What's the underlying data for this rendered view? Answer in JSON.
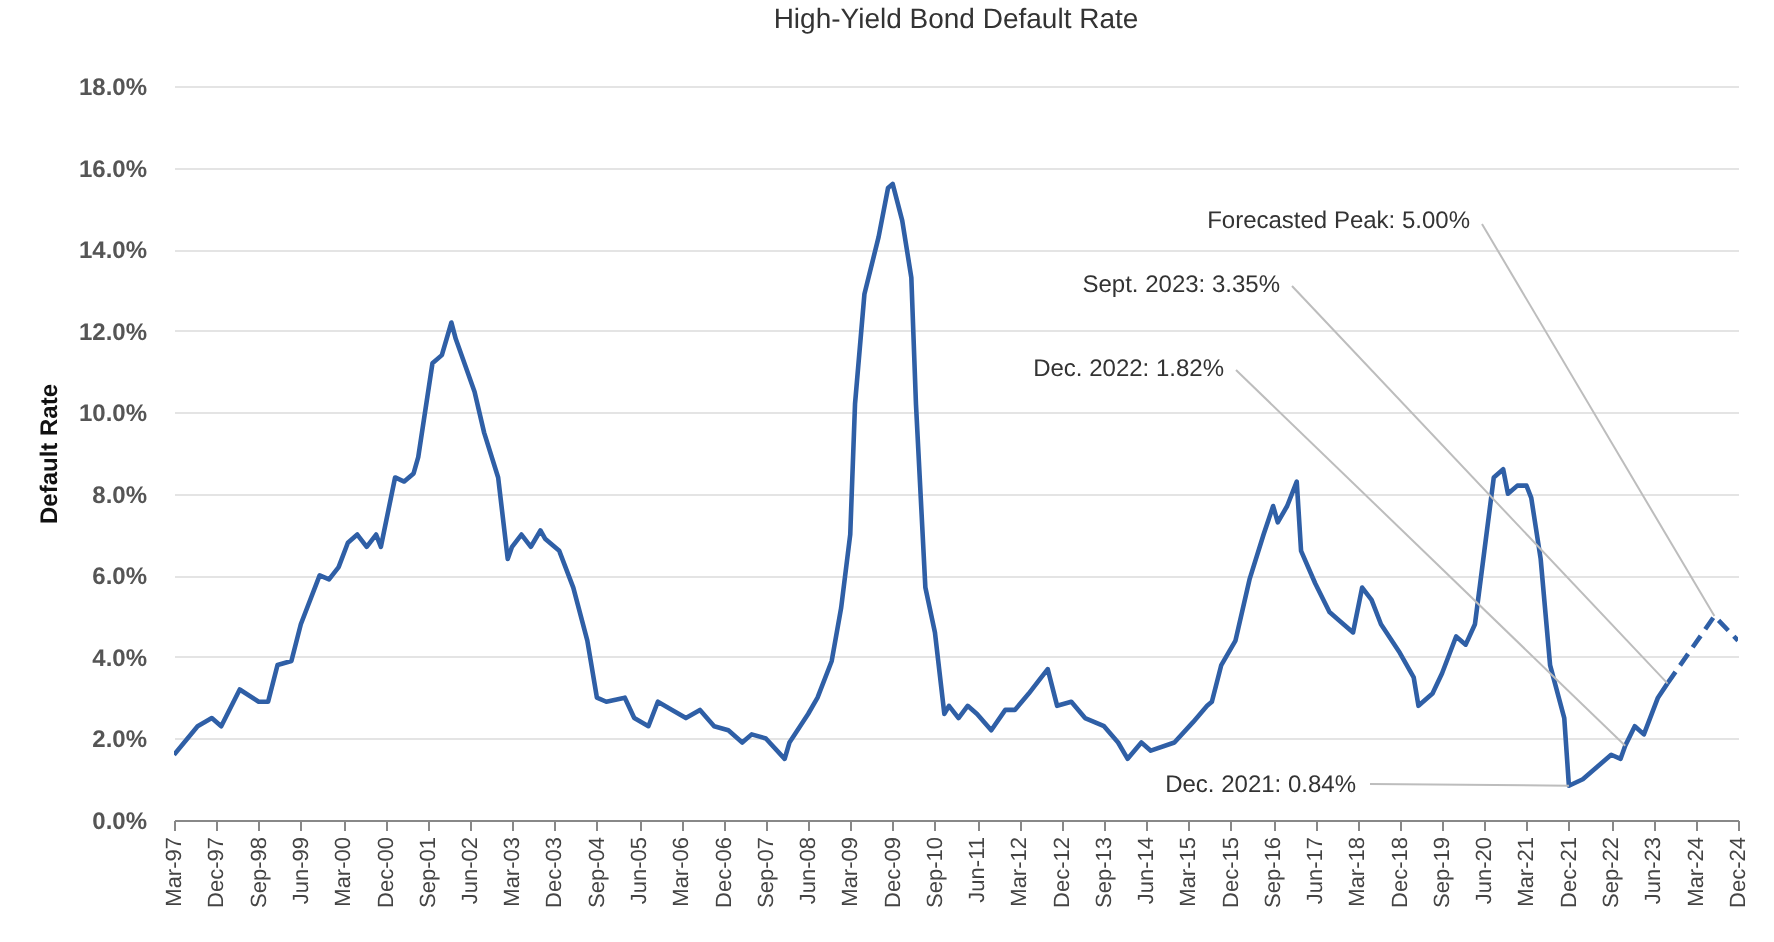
{
  "chart_data": {
    "type": "line",
    "title": "High-Yield Bond Default Rate",
    "ylabel": "Default Rate",
    "grid": "y",
    "line_style": "solid",
    "xlim": [
      "1997-03",
      "2024-12"
    ],
    "xticks": [
      {
        "value": "1997-03",
        "label": "Mar-97"
      },
      {
        "value": "1997-12",
        "label": "Dec-97"
      },
      {
        "value": "1998-09",
        "label": "Sep-98"
      },
      {
        "value": "1999-06",
        "label": "Jun-99"
      },
      {
        "value": "2000-03",
        "label": "Mar-00"
      },
      {
        "value": "2000-12",
        "label": "Dec-00"
      },
      {
        "value": "2001-09",
        "label": "Sep-01"
      },
      {
        "value": "2002-06",
        "label": "Jun-02"
      },
      {
        "value": "2003-03",
        "label": "Mar-03"
      },
      {
        "value": "2003-12",
        "label": "Dec-03"
      },
      {
        "value": "2004-09",
        "label": "Sep-04"
      },
      {
        "value": "2005-06",
        "label": "Jun-05"
      },
      {
        "value": "2006-03",
        "label": "Mar-06"
      },
      {
        "value": "2006-12",
        "label": "Dec-06"
      },
      {
        "value": "2007-09",
        "label": "Sep-07"
      },
      {
        "value": "2008-06",
        "label": "Jun-08"
      },
      {
        "value": "2009-03",
        "label": "Mar-09"
      },
      {
        "value": "2009-12",
        "label": "Dec-09"
      },
      {
        "value": "2010-09",
        "label": "Sep-10"
      },
      {
        "value": "2011-06",
        "label": "Jun-11"
      },
      {
        "value": "2012-03",
        "label": "Mar-12"
      },
      {
        "value": "2012-12",
        "label": "Dec-12"
      },
      {
        "value": "2013-09",
        "label": "Sep-13"
      },
      {
        "value": "2014-06",
        "label": "Jun-14"
      },
      {
        "value": "2015-03",
        "label": "Mar-15"
      },
      {
        "value": "2015-12",
        "label": "Dec-15"
      },
      {
        "value": "2016-09",
        "label": "Sep-16"
      },
      {
        "value": "2017-06",
        "label": "Jun-17"
      },
      {
        "value": "2018-03",
        "label": "Mar-18"
      },
      {
        "value": "2018-12",
        "label": "Dec-18"
      },
      {
        "value": "2019-09",
        "label": "Sep-19"
      },
      {
        "value": "2020-06",
        "label": "Jun-20"
      },
      {
        "value": "2021-03",
        "label": "Mar-21"
      },
      {
        "value": "2021-12",
        "label": "Dec-21"
      },
      {
        "value": "2022-09",
        "label": "Sep-22"
      },
      {
        "value": "2023-06",
        "label": "Jun-23"
      },
      {
        "value": "2024-03",
        "label": "Mar-24"
      },
      {
        "value": "2024-12",
        "label": "Dec-24"
      }
    ],
    "ylim": [
      0,
      18
    ],
    "yticks": [
      {
        "value": 0,
        "label": "0.0%"
      },
      {
        "value": 2,
        "label": "2.0%"
      },
      {
        "value": 4,
        "label": "4.0%"
      },
      {
        "value": 6,
        "label": "6.0%"
      },
      {
        "value": 8,
        "label": "8.0%"
      },
      {
        "value": 10,
        "label": "10.0%"
      },
      {
        "value": 12,
        "label": "12.0%"
      },
      {
        "value": 14,
        "label": "14.0%"
      },
      {
        "value": 16,
        "label": "16.0%"
      },
      {
        "value": 18,
        "label": "18.0%"
      }
    ],
    "series": [
      {
        "color": "#2f5fa6",
        "x": [
          "1997-03",
          "1997-08",
          "1997-11",
          "1998-01",
          "1998-05",
          "1998-09",
          "1998-11",
          "1999-01",
          "1999-04",
          "1999-06",
          "1999-10",
          "1999-12",
          "2000-02",
          "2000-04",
          "2000-06",
          "2000-08",
          "2000-10",
          "2000-11",
          "2001-02",
          "2001-04",
          "2001-06",
          "2001-07",
          "2001-10",
          "2001-12",
          "2002-02",
          "2002-03",
          "2002-07",
          "2002-09",
          "2002-12",
          "2003-02",
          "2003-03",
          "2003-05",
          "2003-07",
          "2003-09",
          "2003-10",
          "2004-01",
          "2004-04",
          "2004-07",
          "2004-09",
          "2004-11",
          "2005-03",
          "2005-05",
          "2005-08",
          "2005-10",
          "2006-01",
          "2006-04",
          "2006-07",
          "2006-10",
          "2007-01",
          "2007-04",
          "2007-06",
          "2007-09",
          "2008-01",
          "2008-02",
          "2008-06",
          "2008-08",
          "2008-11",
          "2009-01",
          "2009-03",
          "2009-04",
          "2009-06",
          "2009-09",
          "2009-11",
          "2009-12",
          "2010-02",
          "2010-04",
          "2010-05",
          "2010-07",
          "2010-09",
          "2010-11",
          "2010-12",
          "2011-02",
          "2011-04",
          "2011-06",
          "2011-09",
          "2011-12",
          "2012-02",
          "2012-05",
          "2012-07",
          "2012-09",
          "2012-11",
          "2013-02",
          "2013-05",
          "2013-09",
          "2013-12",
          "2014-02",
          "2014-05",
          "2014-07",
          "2014-12",
          "2015-04",
          "2015-07",
          "2015-08",
          "2015-10",
          "2016-01",
          "2016-04",
          "2016-07",
          "2016-09",
          "2016-10",
          "2016-12",
          "2017-02",
          "2017-03",
          "2017-06",
          "2017-09",
          "2017-11",
          "2018-02",
          "2018-04",
          "2018-06",
          "2018-08",
          "2018-12",
          "2019-03",
          "2019-04",
          "2019-07",
          "2019-09",
          "2019-12",
          "2020-02",
          "2020-04",
          "2020-06",
          "2020-08",
          "2020-10",
          "2020-11",
          "2021-01",
          "2021-03",
          "2021-04",
          "2021-06",
          "2021-08",
          "2021-11",
          "2021-12",
          "2022-03",
          "2022-06",
          "2022-09",
          "2022-11",
          "2022-12",
          "2023-02",
          "2023-04",
          "2023-07",
          "2023-09"
        ],
        "values": [
          1.6,
          2.3,
          2.5,
          2.3,
          3.2,
          2.9,
          2.9,
          3.8,
          3.9,
          4.8,
          6.0,
          5.9,
          6.2,
          6.8,
          7.0,
          6.7,
          7.0,
          6.7,
          8.4,
          8.3,
          8.5,
          8.9,
          11.2,
          11.4,
          12.2,
          11.8,
          10.5,
          9.5,
          8.4,
          6.4,
          6.7,
          7.0,
          6.7,
          7.1,
          6.9,
          6.6,
          5.7,
          4.4,
          3.0,
          2.9,
          3.0,
          2.5,
          2.3,
          2.9,
          2.7,
          2.5,
          2.7,
          2.3,
          2.2,
          1.9,
          2.1,
          2.0,
          1.5,
          1.9,
          2.6,
          3.0,
          3.9,
          5.2,
          7.0,
          10.2,
          12.9,
          14.3,
          15.5,
          15.6,
          14.7,
          13.3,
          10.2,
          5.7,
          4.6,
          2.6,
          2.8,
          2.5,
          2.8,
          2.6,
          2.2,
          2.7,
          2.7,
          3.1,
          3.4,
          3.7,
          2.8,
          2.9,
          2.5,
          2.3,
          1.9,
          1.5,
          1.9,
          1.7,
          1.9,
          2.4,
          2.8,
          2.9,
          3.8,
          4.4,
          5.9,
          7.0,
          7.7,
          7.3,
          7.7,
          8.3,
          6.6,
          5.8,
          5.1,
          4.9,
          4.6,
          5.7,
          5.4,
          4.8,
          4.1,
          3.5,
          2.8,
          3.1,
          3.6,
          4.5,
          4.3,
          4.8,
          6.6,
          8.4,
          8.6,
          8.0,
          8.2,
          8.2,
          7.9,
          6.4,
          3.8,
          2.5,
          0.84,
          1.0,
          1.3,
          1.6,
          1.5,
          1.82,
          2.3,
          2.1,
          3.0,
          3.35
        ]
      },
      {
        "color": "#2f5fa6",
        "line_style": "dashed",
        "x": [
          "2023-09",
          "2024-07",
          "2024-12"
        ],
        "values": [
          3.35,
          5.0,
          4.4
        ]
      }
    ],
    "annotations": [
      {
        "text": "Forecasted Peak: 5.00%",
        "x": "2024-07",
        "y": 5.0
      },
      {
        "text": "Sept. 2023: 3.35%",
        "x": "2023-09",
        "y": 3.35
      },
      {
        "text": "Dec. 2022: 1.82%",
        "x": "2022-12",
        "y": 1.82
      },
      {
        "text": "Dec. 2021: 0.84%",
        "x": "2021-12",
        "y": 0.84
      }
    ]
  }
}
